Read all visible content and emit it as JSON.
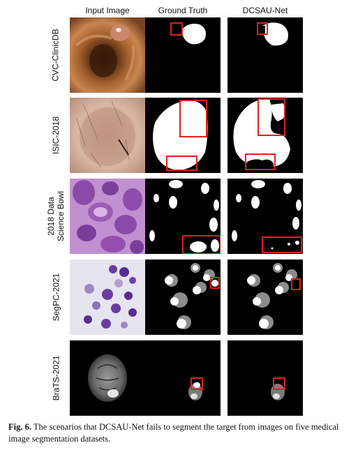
{
  "columns": [
    "Input Image",
    "Ground Truth",
    "DCSAU-Net"
  ],
  "rows": [
    {
      "label_lines": [
        "CVC-ClinicDB"
      ]
    },
    {
      "label_lines": [
        "ISIC-2018"
      ]
    },
    {
      "label_lines": [
        "2018 Data",
        "Science Bowl"
      ]
    },
    {
      "label_lines": [
        "SegPC-2021"
      ]
    },
    {
      "label_lines": [
        "BraTS-2021"
      ]
    }
  ],
  "caption": {
    "label": "Fig. 6.",
    "text": "The scenarios that DCSAU-Net fails to segment the target from images on five medical image segmentation datasets."
  },
  "colors": {
    "highlight_box": "#e0201e",
    "mask_fg": "#ffffff",
    "mask_bg": "#000000",
    "mask_gray": "#8c8c8c"
  }
}
